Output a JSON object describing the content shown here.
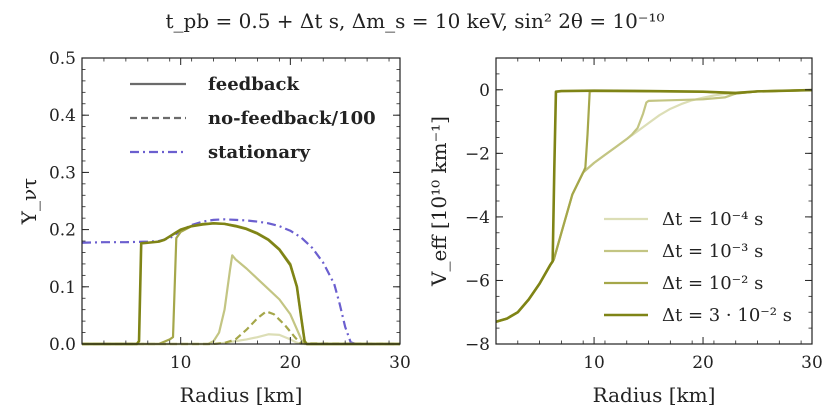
{
  "title": "t_pb = 0.5 + Δt s,  Δm_s = 10 keV, sin² 2θ = 10⁻¹⁰",
  "colors": {
    "olive_dark": "#7f8416",
    "olive_mid": "#a5a74a",
    "olive_light": "#c3c583",
    "olive_pale": "#dcdeb6",
    "gray": "#6b6b6b",
    "stationary": "#6b5fcf"
  },
  "chart_data": [
    {
      "type": "line",
      "xlabel": "Radius [km]",
      "ylabel": "Y_ντ",
      "xlim": [
        1,
        30
      ],
      "ylim": [
        0,
        0.5
      ],
      "xticks": [
        "10",
        "20",
        "30"
      ],
      "yticks": [
        "0.0",
        "0.1",
        "0.2",
        "0.3",
        "0.4",
        "0.5"
      ],
      "legend": {
        "position": "top-center",
        "entries": [
          "feedback",
          "no-feedback/100",
          "stationary"
        ]
      },
      "series": [
        {
          "linestyle": "dashdot",
          "color_key": "stationary",
          "width": 2.2,
          "x": [
            1,
            3,
            5,
            7,
            8,
            9,
            10,
            11,
            12,
            13,
            14,
            15,
            16,
            17,
            18,
            19,
            20,
            21,
            22,
            23,
            24,
            24.5,
            25,
            25.5,
            26,
            30
          ],
          "y": [
            0.177,
            0.178,
            0.178,
            0.179,
            0.18,
            0.185,
            0.198,
            0.208,
            0.214,
            0.217,
            0.218,
            0.217,
            0.216,
            0.214,
            0.211,
            0.206,
            0.198,
            0.186,
            0.168,
            0.142,
            0.105,
            0.07,
            0.03,
            0.003,
            0,
            0
          ]
        },
        {
          "linestyle": "solid",
          "color_key": "olive_pale",
          "width": 2.2,
          "x": [
            1,
            12,
            13,
            14,
            15,
            16,
            17,
            18,
            19,
            20,
            20.5,
            21,
            30
          ],
          "y": [
            0,
            0,
            0.0,
            0.002,
            0.005,
            0.008,
            0.012,
            0.017,
            0.016,
            0.008,
            0.003,
            0,
            0
          ]
        },
        {
          "linestyle": "solid",
          "color_key": "olive_light",
          "width": 2.2,
          "x": [
            1,
            12.5,
            13,
            13.5,
            14,
            14.5,
            14.7,
            15,
            16,
            17,
            18,
            19,
            20,
            20.5,
            21,
            21.3,
            30
          ],
          "y": [
            0,
            0,
            0.005,
            0.02,
            0.06,
            0.13,
            0.155,
            0.148,
            0.132,
            0.114,
            0.096,
            0.078,
            0.052,
            0.03,
            0.008,
            0,
            0
          ]
        },
        {
          "linestyle": "dashed",
          "color_key": "olive_mid",
          "width": 2.2,
          "x": [
            1,
            13,
            14,
            15,
            16,
            17,
            17.8,
            18.5,
            19.5,
            20.5,
            21,
            30
          ],
          "y": [
            0,
            0,
            0.002,
            0.008,
            0.025,
            0.045,
            0.057,
            0.052,
            0.033,
            0.01,
            0.001,
            0
          ]
        },
        {
          "linestyle": "solid",
          "color_key": "olive_mid",
          "width": 2.2,
          "x": [
            1,
            8,
            9,
            9.3,
            9.6,
            10,
            11,
            12,
            13,
            14,
            15,
            16,
            17,
            18,
            19,
            20,
            20.6,
            21,
            21.3,
            21.5,
            30
          ],
          "y": [
            0,
            0,
            0.008,
            0.012,
            0.185,
            0.196,
            0.206,
            0.21,
            0.211,
            0.21,
            0.207,
            0.202,
            0.194,
            0.183,
            0.166,
            0.14,
            0.1,
            0.045,
            0.005,
            0,
            0
          ]
        },
        {
          "linestyle": "solid",
          "color_key": "olive_dark",
          "width": 2.6,
          "x": [
            1,
            6,
            6.2,
            6.4,
            7,
            8,
            8.5,
            9,
            9.5,
            10,
            11,
            12,
            13,
            14,
            15,
            16,
            17,
            18,
            19,
            20,
            20.6,
            21,
            21.3,
            21.5,
            30
          ],
          "y": [
            0,
            0,
            0.005,
            0.176,
            0.177,
            0.179,
            0.182,
            0.188,
            0.194,
            0.2,
            0.206,
            0.209,
            0.211,
            0.21,
            0.206,
            0.201,
            0.193,
            0.182,
            0.165,
            0.138,
            0.1,
            0.045,
            0.005,
            0,
            0
          ]
        }
      ]
    },
    {
      "type": "line",
      "xlabel": "Radius [km]",
      "ylabel": "V_eff [10¹⁰ km⁻¹]",
      "xlim": [
        1,
        30
      ],
      "ylim": [
        -8,
        1
      ],
      "xticks": [
        "10",
        "20",
        "30"
      ],
      "yticks": [
        "0",
        "−2",
        "−4",
        "−6",
        "−8"
      ],
      "legend": {
        "position": "bottom-right",
        "entries": [
          "Δt = 10⁻⁴ s",
          "Δt = 10⁻³ s",
          "Δt = 10⁻² s",
          "Δt = 3 · 10⁻² s"
        ]
      },
      "series": [
        {
          "name": "Δt = 10⁻⁴ s",
          "color_key": "olive_pale",
          "width": 2.2,
          "x": [
            1,
            2,
            3,
            4,
            5,
            6,
            6.3,
            7,
            8,
            9,
            10,
            11,
            12,
            13,
            14,
            15,
            16,
            17,
            18,
            19,
            20,
            21,
            22,
            23,
            25,
            30
          ],
          "y": [
            -7.3,
            -7.2,
            -7.0,
            -6.6,
            -6.1,
            -5.5,
            -5.35,
            -4.5,
            -3.3,
            -2.6,
            -2.3,
            -2.05,
            -1.8,
            -1.55,
            -1.3,
            -1.05,
            -0.8,
            -0.6,
            -0.45,
            -0.33,
            -0.25,
            -0.18,
            -0.13,
            -0.09,
            -0.05,
            -0.01
          ]
        },
        {
          "name": "Δt = 10⁻³ s",
          "color_key": "olive_light",
          "width": 2.2,
          "x": [
            1,
            2,
            3,
            4,
            5,
            6,
            6.3,
            7,
            8,
            9,
            10,
            11,
            12,
            13,
            13.5,
            14,
            14.5,
            14.8,
            15,
            16,
            18,
            20,
            22,
            23,
            25,
            30
          ],
          "y": [
            -7.3,
            -7.2,
            -7.0,
            -6.6,
            -6.1,
            -5.5,
            -5.35,
            -4.5,
            -3.3,
            -2.6,
            -2.3,
            -2.05,
            -1.8,
            -1.55,
            -1.4,
            -1.2,
            -0.75,
            -0.4,
            -0.35,
            -0.34,
            -0.32,
            -0.3,
            -0.24,
            -0.12,
            -0.05,
            -0.01
          ]
        },
        {
          "name": "Δt = 10⁻² s",
          "color_key": "olive_mid",
          "width": 2.2,
          "x": [
            1,
            2,
            3,
            4,
            5,
            6,
            6.3,
            7,
            8,
            9,
            9.2,
            9.4,
            9.6,
            10,
            15,
            20,
            23,
            25,
            30
          ],
          "y": [
            -7.3,
            -7.2,
            -7.0,
            -6.6,
            -6.1,
            -5.5,
            -5.35,
            -4.5,
            -3.3,
            -2.6,
            -2.45,
            -1.4,
            -0.05,
            -0.04,
            -0.05,
            -0.06,
            -0.12,
            -0.05,
            -0.01
          ]
        },
        {
          "name": "Δt = 3 · 10⁻² s",
          "color_key": "olive_dark",
          "width": 2.6,
          "x": [
            1,
            2,
            3,
            4,
            5,
            6,
            6.2,
            6.35,
            6.5,
            7,
            10,
            15,
            20,
            23,
            25,
            30
          ],
          "y": [
            -7.3,
            -7.2,
            -7.0,
            -6.6,
            -6.1,
            -5.5,
            -5.4,
            -2.5,
            -0.06,
            -0.04,
            -0.03,
            -0.04,
            -0.06,
            -0.1,
            -0.05,
            -0.01
          ]
        }
      ]
    }
  ]
}
